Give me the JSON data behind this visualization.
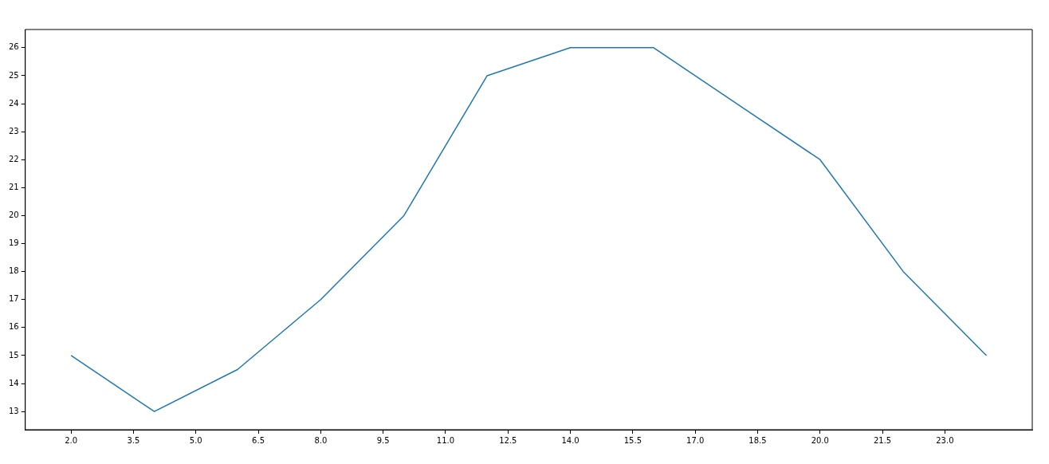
{
  "chart_data": {
    "type": "line",
    "x": [
      2,
      4,
      6,
      8,
      10,
      12,
      14,
      16,
      18,
      20,
      22,
      24
    ],
    "series": [
      {
        "color": "#1f77b4",
        "values": [
          15,
          13,
          14.5,
          17,
          20,
          25,
          26,
          26,
          24,
          22,
          18,
          15
        ]
      }
    ],
    "xlim": [
      0.9,
      25.1
    ],
    "ylim": [
      12.35,
      26.65
    ],
    "xticks": [
      {
        "value": 2,
        "label": "2.0"
      },
      {
        "value": 3.5,
        "label": "3.5"
      },
      {
        "value": 5,
        "label": "5.0"
      },
      {
        "value": 6.5,
        "label": "6.5"
      },
      {
        "value": 8,
        "label": "8.0"
      },
      {
        "value": 9.5,
        "label": "9.5"
      },
      {
        "value": 11,
        "label": "11.0"
      },
      {
        "value": 12.5,
        "label": "12.5"
      },
      {
        "value": 14,
        "label": "14.0"
      },
      {
        "value": 15.5,
        "label": "15.5"
      },
      {
        "value": 17,
        "label": "17.0"
      },
      {
        "value": 18.5,
        "label": "18.5"
      },
      {
        "value": 20,
        "label": "20.0"
      },
      {
        "value": 21.5,
        "label": "21.5"
      },
      {
        "value": 23,
        "label": "23.0"
      }
    ],
    "yticks": [
      13,
      14,
      15,
      16,
      17,
      18,
      19,
      20,
      21,
      22,
      23,
      24,
      25,
      26
    ],
    "grid": false,
    "legend": false,
    "marker": "none",
    "line_style": "solid"
  }
}
